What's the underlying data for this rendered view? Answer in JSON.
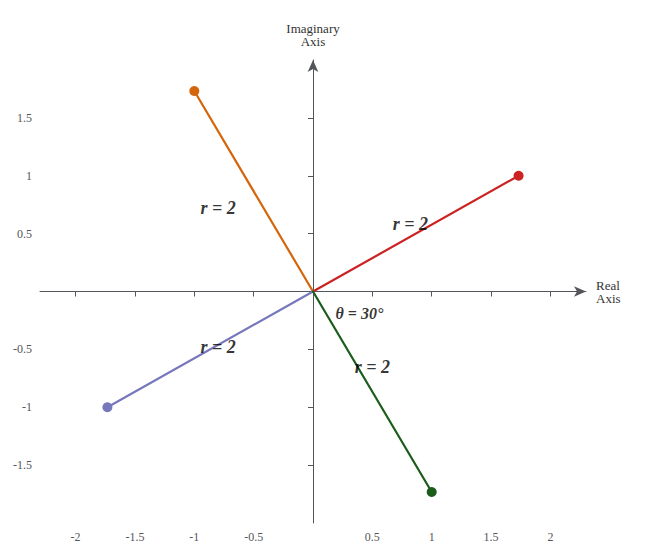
{
  "chart_data": {
    "type": "line",
    "xlabel": "Real\nAxis",
    "ylabel": "Imaginary\nAxis",
    "xlim": [
      -2.3,
      2.3
    ],
    "ylim": [
      -2.0,
      2.0
    ],
    "xticks": [
      -2,
      -1.5,
      -1,
      -0.5,
      0.5,
      1,
      1.5,
      2
    ],
    "yticks": [
      -1.5,
      -1,
      -0.5,
      0.5,
      1,
      1.5
    ],
    "grid": false,
    "marker": "circle",
    "series": [
      {
        "color": "#cc2222",
        "x": [
          0,
          1.7320508075688772
        ],
        "values": [
          0,
          1.0
        ]
      },
      {
        "color": "#d4650a",
        "x": [
          0,
          -1.0
        ],
        "values": [
          0,
          1.7320508075688772
        ]
      },
      {
        "color": "#7777bb",
        "x": [
          0,
          -1.7320508075688772
        ],
        "values": [
          0,
          -1.0
        ]
      },
      {
        "color": "#1a5c1a",
        "x": [
          0,
          1.0
        ],
        "values": [
          0,
          -1.7320508075688772
        ]
      }
    ],
    "annotations": [
      {
        "text": "r = 2",
        "x": 0.82,
        "y": 0.58
      },
      {
        "text": "r = 2",
        "x": -0.8,
        "y": 0.72
      },
      {
        "text": "r = 2",
        "x": -0.8,
        "y": -0.48
      },
      {
        "text": "r = 2",
        "x": 0.5,
        "y": -0.65
      },
      {
        "text": "θ = 30°",
        "x": 0.19,
        "y": -0.12
      }
    ]
  }
}
